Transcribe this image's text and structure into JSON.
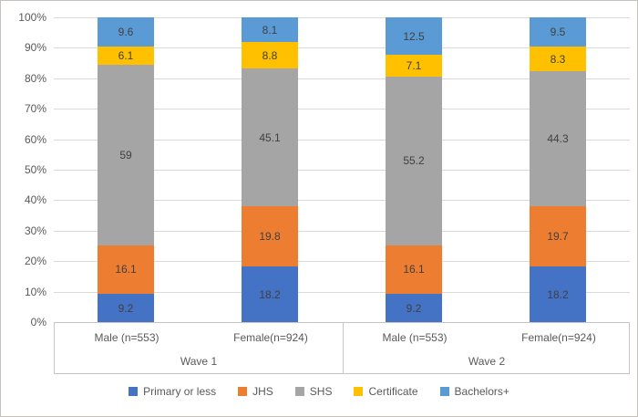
{
  "chart_data": {
    "type": "bar",
    "variant": "stacked-100-percent-column",
    "title": "",
    "xlabel": "",
    "ylabel": "",
    "ylim": [
      0,
      100
    ],
    "grid": true,
    "y_ticks": [
      "0%",
      "10%",
      "20%",
      "30%",
      "40%",
      "50%",
      "60%",
      "70%",
      "80%",
      "90%",
      "100%"
    ],
    "categories": [
      "Male (n=553)",
      "Female(n=924)",
      "Male (n=553)",
      "Female(n=924)"
    ],
    "group_labels": [
      "Wave 1",
      "Wave 2"
    ],
    "legend_position": "bottom",
    "series": [
      {
        "name": "Primary or less",
        "color": "#4472C4",
        "values": [
          9.2,
          18.2,
          9.2,
          18.2
        ]
      },
      {
        "name": "JHS",
        "color": "#ED7D31",
        "values": [
          16.1,
          19.8,
          16.1,
          19.7
        ]
      },
      {
        "name": "SHS",
        "color": "#A5A5A5",
        "values": [
          59,
          45.1,
          55.2,
          44.3
        ]
      },
      {
        "name": "Certificate",
        "color": "#FFC000",
        "values": [
          6.1,
          8.8,
          7.1,
          8.3
        ]
      },
      {
        "name": "Bachelors+",
        "color": "#5B9BD5",
        "values": [
          9.6,
          8.1,
          12.5,
          9.5
        ]
      }
    ],
    "colors": {
      "gridline": "#d9d9d9",
      "axis_border": "#c6c6c6",
      "tick_text": "#595959",
      "data_label_text": "#404040"
    }
  }
}
